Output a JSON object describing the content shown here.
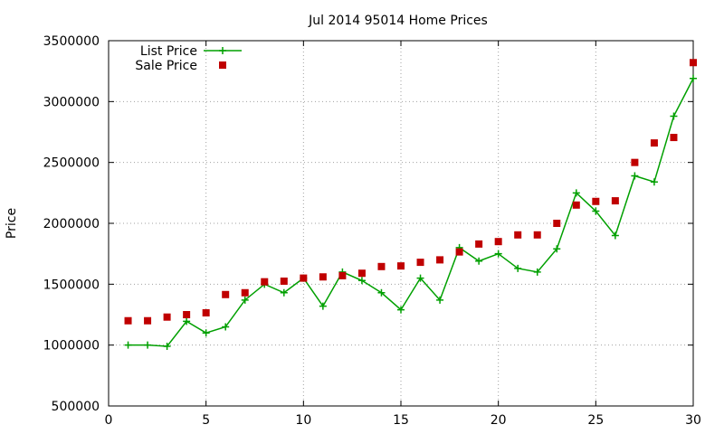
{
  "chart_data": {
    "type": "line",
    "title": "Jul 2014 95014 Home Prices",
    "xlabel": "",
    "ylabel": "Price",
    "xlim": [
      0,
      30
    ],
    "ylim": [
      500000,
      3500000
    ],
    "x_ticks": [
      0,
      5,
      10,
      15,
      20,
      25,
      30
    ],
    "y_ticks": [
      500000,
      1000000,
      1500000,
      2000000,
      2500000,
      3000000,
      3500000
    ],
    "grid": true,
    "legend": "top-left",
    "x": [
      1,
      2,
      3,
      4,
      5,
      6,
      7,
      8,
      9,
      10,
      11,
      12,
      13,
      14,
      15,
      16,
      17,
      18,
      19,
      20,
      21,
      22,
      23,
      24,
      25,
      26,
      27,
      28,
      29,
      30
    ],
    "series": [
      {
        "name": "List Price",
        "style": "lines+points",
        "marker": "plus",
        "color": "#00a000",
        "values": [
          1000000,
          1000000,
          990000,
          1195000,
          1100000,
          1150000,
          1370000,
          1500000,
          1430000,
          1550000,
          1320000,
          1600000,
          1530000,
          1430000,
          1290000,
          1550000,
          1370000,
          1800000,
          1690000,
          1750000,
          1630000,
          1600000,
          1790000,
          2250000,
          2100000,
          1900000,
          2390000,
          2340000,
          2880000,
          3190000
        ]
      },
      {
        "name": "Sale Price",
        "style": "points",
        "marker": "square",
        "color": "#c00000",
        "values": [
          1200000,
          1200000,
          1230000,
          1250000,
          1265000,
          1415000,
          1430000,
          1520000,
          1525000,
          1550000,
          1560000,
          1570000,
          1590000,
          1645000,
          1650000,
          1680000,
          1700000,
          1765000,
          1830000,
          1850000,
          1905000,
          1905000,
          2000000,
          2150000,
          2180000,
          2185000,
          2500000,
          2660000,
          2705000,
          3320000
        ]
      }
    ]
  }
}
